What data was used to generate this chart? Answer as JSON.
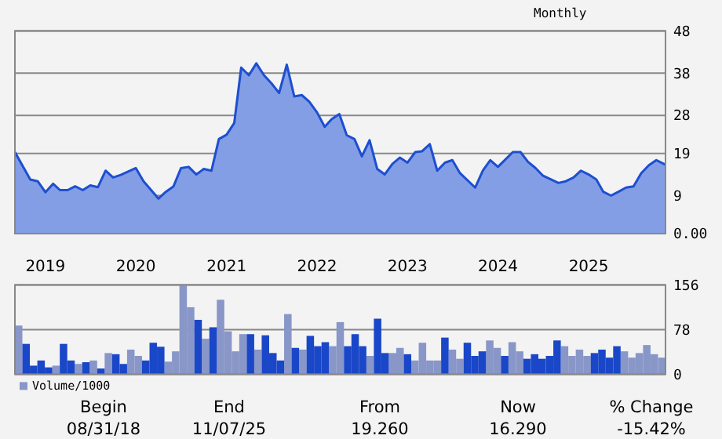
{
  "chart_data": [
    {
      "type": "area",
      "annotations": [
        "Monthly"
      ],
      "x": [
        "2018-08-31",
        "2018-11",
        "2018-12",
        "2019-01",
        "2019-02",
        "2019-03",
        "2019-04",
        "2019-05",
        "2019-06",
        "2019-07",
        "2019-08",
        "2019-09",
        "2019-10",
        "2019-11",
        "2020-01",
        "2020-02",
        "2020-04",
        "2020-05",
        "2020-06",
        "2020-07",
        "2020-08",
        "2020-09",
        "2020-10",
        "2020-11",
        "2020-12",
        "2021-01",
        "2021-02",
        "2021-03",
        "2021-04",
        "2021-05",
        "2021-06",
        "2021-07",
        "2021-08",
        "2021-09",
        "2021-10",
        "2021-11",
        "2021-12",
        "2022-01",
        "2022-02",
        "2022-03",
        "2022-04",
        "2022-05",
        "2022-06",
        "2022-07",
        "2022-08",
        "2022-09",
        "2022-10",
        "2022-11",
        "2022-12",
        "2023-01",
        "2023-02",
        "2023-03",
        "2023-04",
        "2023-05",
        "2023-06",
        "2023-07",
        "2023-08",
        "2023-10",
        "2023-11",
        "2023-12",
        "2024-01",
        "2024-03",
        "2024-04",
        "2024-05",
        "2024-06",
        "2024-07",
        "2024-09",
        "2024-10",
        "2024-11",
        "2024-12",
        "2025-01",
        "2025-02",
        "2025-03",
        "2025-04",
        "2025-05",
        "2025-06",
        "2025-07",
        "2025-08",
        "2025-09",
        "2025-10",
        "2025-11-07"
      ],
      "series": [
        {
          "color": "#1d4fd0",
          "values": [
            19.3,
            12.8,
            12.4,
            9.8,
            11.8,
            10.3,
            10.3,
            11.2,
            10.3,
            11.4,
            11.0,
            14.9,
            13.3,
            13.9,
            15.5,
            12.4,
            8.3,
            9.9,
            11.2,
            15.5,
            15.8,
            14.0,
            15.3,
            14.9,
            22.4,
            23.4,
            26.2,
            39.3,
            37.5,
            40.3,
            37.5,
            35.6,
            33.3,
            40.0,
            32.5,
            32.8,
            31.2,
            28.7,
            25.3,
            27.1,
            28.3,
            23.3,
            22.4,
            18.3,
            22.1,
            15.3,
            14.0,
            16.5,
            18.0,
            16.8,
            19.3,
            19.5,
            21.2,
            14.9,
            16.8,
            17.4,
            14.3,
            10.9,
            14.9,
            17.4,
            15.8,
            19.3,
            19.3,
            17.0,
            15.5,
            13.7,
            12.0,
            12.4,
            13.3,
            14.9,
            14.0,
            12.8,
            9.9,
            9.0,
            9.9,
            10.9,
            11.2,
            14.3,
            16.2,
            17.4,
            16.3
          ]
        }
      ],
      "xlim": [
        "2018-08-31",
        "2025-11-07"
      ],
      "xticks": [
        "2019",
        "2020",
        "2021",
        "2022",
        "2023",
        "2024",
        "2025"
      ],
      "ylim": [
        0,
        48
      ],
      "yticks": [
        48,
        38,
        28,
        19,
        9,
        {
          "value": 0,
          "label": "0.00"
        }
      ],
      "grid": "y"
    },
    {
      "type": "bar",
      "categories": [
        null,
        null,
        null,
        null,
        null,
        null,
        null,
        null,
        null,
        null,
        null,
        null,
        null,
        null,
        null,
        null,
        null,
        null,
        null,
        null,
        null,
        null,
        null,
        null,
        null,
        null,
        null,
        null,
        null,
        null,
        null,
        null,
        null,
        null,
        null,
        null,
        null,
        null,
        null,
        null,
        null,
        null,
        null,
        null,
        null,
        null,
        null,
        null,
        null,
        null,
        null,
        null,
        null,
        null,
        null,
        null,
        null,
        null,
        null,
        null,
        null,
        null,
        null,
        null,
        null,
        null,
        null,
        null,
        null,
        null,
        null,
        null,
        null,
        null,
        null,
        null,
        null,
        null,
        null,
        null,
        null,
        null,
        null,
        null,
        null,
        null,
        null
      ],
      "series": [
        {
          "name": "Volume/1000",
          "color": "#8896c8",
          "values": [
            85,
            null,
            null,
            null,
            null,
            15,
            null,
            null,
            18,
            null,
            24,
            null,
            37,
            null,
            null,
            43,
            32,
            null,
            null,
            null,
            22,
            40,
            155,
            117,
            null,
            62,
            null,
            130,
            75,
            40,
            70,
            null,
            43,
            null,
            null,
            null,
            105,
            null,
            43,
            null,
            null,
            null,
            49,
            91,
            null,
            null,
            null,
            32,
            null,
            null,
            37,
            46,
            null,
            24,
            55,
            24,
            24,
            null,
            43,
            27,
            null,
            null,
            null,
            59,
            46,
            null,
            56,
            40,
            null,
            null,
            null,
            null,
            null,
            49,
            32,
            43,
            32,
            null,
            null,
            null,
            null,
            40,
            29,
            37,
            51,
            35,
            29
          ]
        },
        {
          "color": "#1a47c8",
          "values": [
            null,
            53,
            15,
            24,
            12,
            null,
            53,
            24,
            null,
            21,
            null,
            10,
            null,
            35,
            18,
            null,
            null,
            24,
            55,
            48,
            null,
            null,
            null,
            null,
            95,
            null,
            82,
            null,
            null,
            null,
            null,
            70,
            null,
            68,
            37,
            24,
            null,
            46,
            null,
            67,
            49,
            56,
            null,
            null,
            49,
            70,
            49,
            null,
            97,
            37,
            null,
            null,
            35,
            null,
            null,
            null,
            null,
            64,
            null,
            null,
            55,
            32,
            40,
            null,
            null,
            32,
            null,
            null,
            27,
            35,
            27,
            32,
            59,
            null,
            null,
            null,
            null,
            37,
            43,
            29,
            49,
            null,
            null,
            null,
            null,
            null,
            null
          ]
        }
      ],
      "ylim": [
        0,
        156
      ],
      "yticks": [
        0,
        78,
        156
      ],
      "grid": "y",
      "legend": "bottom left",
      "tick_labels": "y"
    },
    {
      "type": "other",
      "annotations": [
        "Begin",
        "08/31/18",
        "End",
        "11/07/25",
        "From",
        "19.260",
        "Now",
        "16.290",
        "% Change",
        "-15.42%"
      ]
    }
  ]
}
